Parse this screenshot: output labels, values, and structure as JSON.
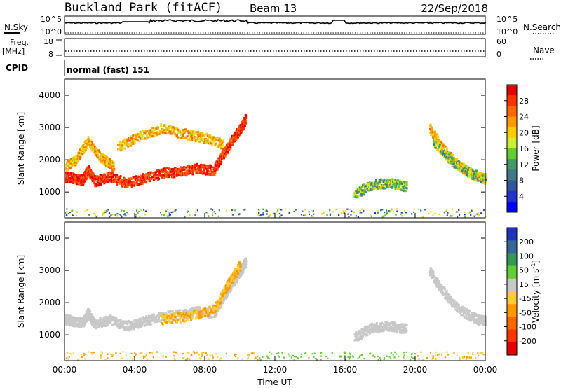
{
  "header": {
    "site": "Buckland Park (fitACF)",
    "beam": "Beam 13",
    "date": "22/Sep/2018"
  },
  "top_panels": {
    "nsky_label": "N.Sky",
    "nsky_ticks": [
      "10^5",
      "10^0"
    ],
    "nsearch_label": "N.Search",
    "nsearch_ticks": [
      "10^5",
      "10^0"
    ],
    "freq_label": "Freq.",
    "freq_unit": "[MHz]",
    "freq_ticks": [
      "18",
      "8"
    ],
    "nave_label": "Nave",
    "nave_ticks": [
      "60",
      "0"
    ],
    "cpid_label": "CPID",
    "cpid_value": "normal (fast) 151"
  },
  "chart_data": [
    {
      "type": "heatmap",
      "name": "power",
      "ylabel": "Slant Range [km]",
      "yticks": [
        1000,
        2000,
        3000,
        4000
      ],
      "ylim": [
        200,
        4500
      ],
      "xlim": [
        0,
        24
      ],
      "colorbar_label": "Power [dB]",
      "colorbar_ticks": [
        "28",
        "24",
        "20",
        "16",
        "12",
        "8",
        "4"
      ],
      "colorbar_colors": [
        "#e60000",
        "#ff3300",
        "#ff6600",
        "#ff9900",
        "#ffcc00",
        "#ccee33",
        "#66cc33",
        "#449966",
        "#447788",
        "#335599",
        "#2233cc",
        "#0000ff"
      ],
      "echo_bands": [
        {
          "t": [
            0.0,
            0.5,
            1.0,
            1.3,
            1.7,
            2.5,
            3.5,
            4.5,
            5.5,
            6.5,
            7.5,
            8.5,
            9.0,
            9.5,
            10.0,
            10.3
          ],
          "r": [
            1500,
            1450,
            1400,
            1700,
            1350,
            1500,
            1300,
            1450,
            1600,
            1650,
            1750,
            1700,
            2200,
            2600,
            3000,
            3300
          ],
          "level": 26
        },
        {
          "t": [
            0.0,
            0.6,
            1.3,
            2.0,
            2.8
          ],
          "r": [
            1800,
            2000,
            2600,
            2100,
            1800
          ],
          "level": 22
        },
        {
          "t": [
            3.0,
            4.0,
            5.5,
            7.0,
            8.0,
            9.0
          ],
          "r": [
            2400,
            2700,
            3000,
            2800,
            2700,
            2500
          ],
          "level": 18
        },
        {
          "t": [
            20.8,
            21.5,
            22.5,
            23.5,
            24.0
          ],
          "r": [
            3000,
            2400,
            1800,
            1500,
            1450
          ],
          "level": 20
        },
        {
          "t": [
            21.0,
            22.0,
            23.0,
            24.0
          ],
          "r": [
            2600,
            2000,
            1650,
            1400
          ],
          "level": 12
        },
        {
          "t": [
            16.5,
            17.5,
            18.5,
            19.5
          ],
          "r": [
            950,
            1250,
            1300,
            1200
          ],
          "level": 14
        }
      ]
    },
    {
      "type": "heatmap",
      "name": "velocity",
      "ylabel": "Slant Range [km]",
      "yticks": [
        1000,
        2000,
        3000,
        4000
      ],
      "ylim": [
        200,
        4500
      ],
      "xlim": [
        0,
        24
      ],
      "xticks": [
        "00:00",
        "04:00",
        "08:00",
        "12:00",
        "16:00",
        "20:00",
        "00:00"
      ],
      "xlabel": "Time UT",
      "colorbar_label": "Velocity [m s",
      "colorbar_unit_exp": "-1",
      "colorbar_ticks": [
        "200",
        "100",
        "50",
        "15",
        "-15",
        "-50",
        "-100",
        "-200"
      ],
      "colorbar_colors": [
        "#2233bb",
        "#336699",
        "#339955",
        "#66cc33",
        "#c8c8c8",
        "#ffcc33",
        "#ff9900",
        "#ff6600",
        "#ff3300",
        "#e60000"
      ],
      "echo_bands": [
        {
          "t": [
            0.0,
            0.5,
            1.0,
            1.3,
            1.7,
            2.5,
            3.5,
            4.5,
            5.5,
            6.5,
            7.5,
            8.5,
            9.0,
            9.5,
            10.0,
            10.3
          ],
          "r": [
            1500,
            1450,
            1400,
            1700,
            1350,
            1500,
            1300,
            1450,
            1600,
            1650,
            1750,
            1700,
            2200,
            2600,
            3000,
            3300
          ],
          "vel": -15
        },
        {
          "t": [
            5.5,
            7.0,
            8.5,
            9.3,
            10.0
          ],
          "r": [
            1500,
            1600,
            1800,
            2600,
            3200
          ],
          "vel": -50
        },
        {
          "t": [
            20.8,
            21.5,
            22.5,
            23.5,
            24.0
          ],
          "r": [
            3000,
            2400,
            1800,
            1500,
            1450
          ],
          "vel": -15
        },
        {
          "t": [
            16.5,
            17.5,
            18.5,
            19.5
          ],
          "r": [
            950,
            1250,
            1300,
            1200
          ],
          "vel": 0
        }
      ]
    }
  ]
}
